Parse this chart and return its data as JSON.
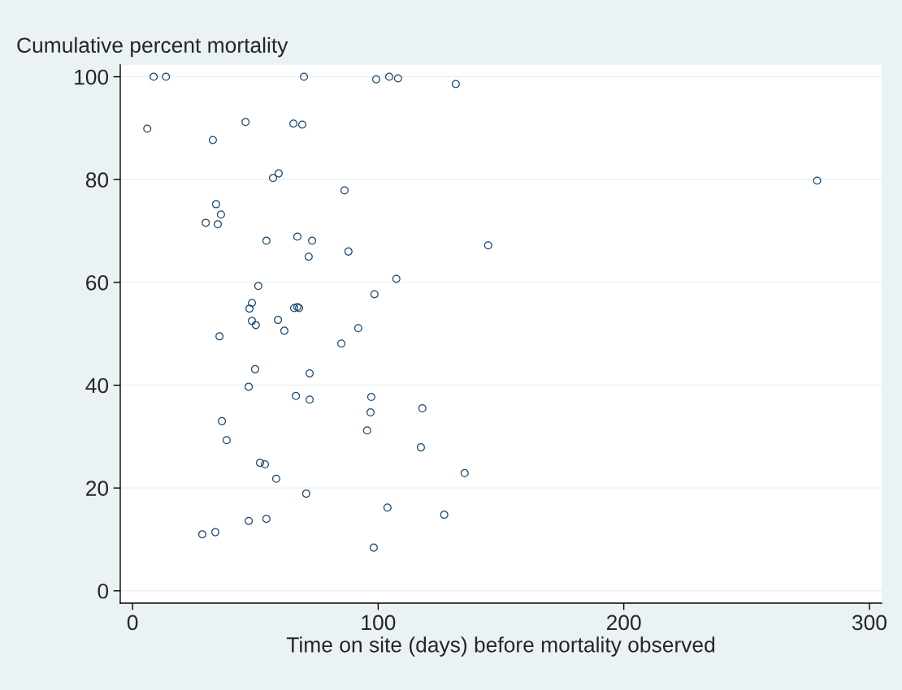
{
  "chart_data": {
    "type": "scatter",
    "xlabel": "Time on site (days) before mortality observed",
    "ylabel": "Cumulative percent mortality",
    "x": [
      8.6,
      13.6,
      69.8,
      99.2,
      104.5,
      108.1,
      131.6,
      6.0,
      46.0,
      65.5,
      69.1,
      32.7,
      59.5,
      57.2,
      86.3,
      278.7,
      34.0,
      36.0,
      29.8,
      34.7,
      54.5,
      67.1,
      73.1,
      144.8,
      71.7,
      87.9,
      107.4,
      51.2,
      98.5,
      48.6,
      47.6,
      65.8,
      67.1,
      67.8,
      59.2,
      48.6,
      50.2,
      91.9,
      61.8,
      35.4,
      85.0,
      49.9,
      72.1,
      47.3,
      66.5,
      72.1,
      97.2,
      118.0,
      96.9,
      36.4,
      95.5,
      38.3,
      117.4,
      51.9,
      53.9,
      135.2,
      58.5,
      70.7,
      103.8,
      126.9,
      54.5,
      47.3,
      28.4,
      33.7,
      98.2
    ],
    "values": [
      100,
      100,
      100,
      99.5,
      100,
      99.7,
      98.6,
      89.9,
      91.2,
      90.9,
      90.7,
      87.7,
      81.2,
      80.3,
      77.9,
      79.8,
      75.2,
      73.2,
      71.6,
      71.3,
      68.1,
      68.9,
      68.1,
      67.2,
      65.0,
      66.0,
      60.7,
      59.3,
      57.7,
      56.0,
      54.9,
      55.0,
      55.2,
      55.0,
      52.7,
      52.5,
      51.7,
      51.1,
      50.6,
      49.5,
      48.1,
      43.1,
      42.3,
      39.7,
      37.9,
      37.2,
      37.7,
      35.5,
      34.7,
      33.0,
      31.2,
      29.3,
      27.9,
      24.9,
      24.6,
      22.9,
      21.8,
      18.9,
      16.2,
      14.8,
      14.0,
      13.6,
      11.0,
      11.4,
      8.4
    ],
    "color": "#1a476f",
    "marker": "circle",
    "xlim": [
      -5,
      305
    ],
    "ylim": [
      -2.4,
      102.3
    ],
    "xticks": [
      0,
      100,
      200,
      300
    ],
    "yticks": [
      0,
      20,
      40,
      60,
      80,
      100
    ],
    "grid": "y"
  }
}
